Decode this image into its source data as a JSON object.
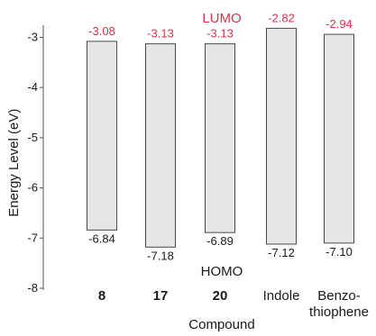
{
  "chart_data": {
    "type": "bar",
    "title": "",
    "top_label": "LUMO",
    "bottom_label": "HOMO",
    "xlabel": "Compound",
    "ylabel": "Energy Level (eV)",
    "ylim": [
      -8,
      -2.4
    ],
    "yticks": [
      -3,
      -4,
      -5,
      -6,
      -7,
      -8
    ],
    "ytick_labels": [
      "-3",
      "-4",
      "-5",
      "-6",
      "-7",
      "-8"
    ],
    "categories": [
      {
        "label": "8",
        "line2": "",
        "bold": true
      },
      {
        "label": "17",
        "line2": "",
        "bold": true
      },
      {
        "label": "20",
        "line2": "",
        "bold": true
      },
      {
        "label": "Indole",
        "line2": "",
        "bold": false
      },
      {
        "label": "Benzo-",
        "line2": "thiophene",
        "bold": false
      }
    ],
    "lumo": [
      -3.08,
      -3.13,
      -3.13,
      -2.82,
      -2.94
    ],
    "homo": [
      -6.84,
      -7.18,
      -6.89,
      -7.12,
      -7.1
    ],
    "lumo_labels": [
      "-3.08",
      "-3.13",
      "-3.13",
      "-2.82",
      "-2.94"
    ],
    "homo_labels": [
      "-6.84",
      "-7.18",
      "-6.89",
      "-7.12",
      "-7.10"
    ],
    "colors": {
      "bar_fill": "#e6e6e6",
      "bar_stroke": "#4a4a4a",
      "lumo_text": "#d6334a",
      "text": "#1a1a1a",
      "axis": "#555555"
    }
  }
}
